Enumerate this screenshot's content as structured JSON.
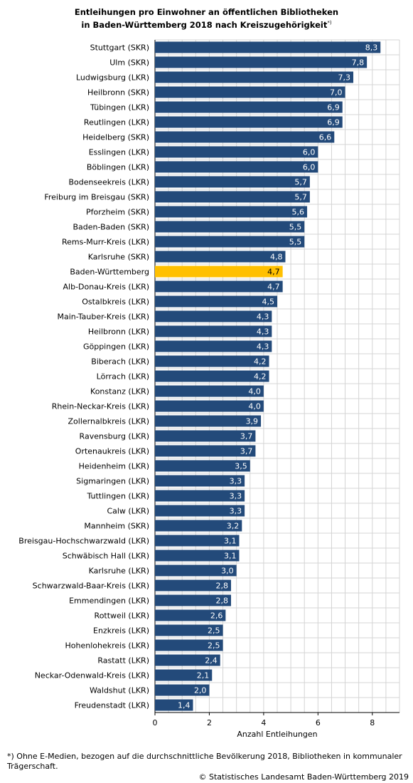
{
  "title_line1": "Entleihungen pro Einwohner an öffentlichen Bibliotheken",
  "title_line2": "in Baden-Württemberg 2018 nach Kreiszugehörigkeit",
  "title_marker": "*)",
  "footnote": "*) Ohne E-Medien, bezogen auf die durchschnittliche Bevölkerung 2018, Bibliotheken in kommunaler Trägerschaft.",
  "source": "© Statistisches Landesamt Baden-Württemberg 2019",
  "colors": {
    "bar": "#234a7a",
    "highlight": "#ffc000",
    "grid": "#d4d4d4"
  },
  "chart_data": {
    "type": "bar",
    "orientation": "horizontal",
    "xlabel": "Anzahl Entleihungen",
    "xlim": [
      0,
      9
    ],
    "xticks": [
      0,
      2,
      4,
      6,
      8
    ],
    "grid": true,
    "highlight": "Baden-Württemberg",
    "categories": [
      "Stuttgart (SKR)",
      "Ulm (SKR)",
      "Ludwigsburg (LKR)",
      "Heilbronn (SKR)",
      "Tübingen (LKR)",
      "Reutlingen (LKR)",
      "Heidelberg (SKR)",
      "Esslingen (LKR)",
      "Böblingen (LKR)",
      "Bodenseekreis (LKR)",
      "Freiburg im Breisgau (SKR)",
      "Pforzheim (SKR)",
      "Baden-Baden (SKR)",
      "Rems-Murr-Kreis (LKR)",
      "Karlsruhe (SKR)",
      "Baden-Württemberg",
      "Alb-Donau-Kreis (LKR)",
      "Ostalbkreis (LKR)",
      "Main-Tauber-Kreis (LKR)",
      "Heilbronn (LKR)",
      "Göppingen (LKR)",
      "Biberach (LKR)",
      "Lörrach (LKR)",
      "Konstanz (LKR)",
      "Rhein-Neckar-Kreis (LKR)",
      "Zollernalbkreis (LKR)",
      "Ravensburg (LKR)",
      "Ortenaukreis (LKR)",
      "Heidenheim (LKR)",
      "Sigmaringen (LKR)",
      "Tuttlingen (LKR)",
      "Calw (LKR)",
      "Mannheim (SKR)",
      "Breisgau-Hochschwarzwald (LKR)",
      "Schwäbisch Hall (LKR)",
      "Karlsruhe (LKR)",
      "Schwarzwald-Baar-Kreis (LKR)",
      "Emmendingen (LKR)",
      "Rottweil (LKR)",
      "Enzkreis (LKR)",
      "Hohenlohekreis (LKR)",
      "Rastatt (LKR)",
      "Neckar-Odenwald-Kreis (LKR)",
      "Waldshut (LKR)",
      "Freudenstadt (LKR)"
    ],
    "values": [
      8.3,
      7.8,
      7.3,
      7.0,
      6.9,
      6.9,
      6.6,
      6.0,
      6.0,
      5.7,
      5.7,
      5.6,
      5.5,
      5.5,
      4.8,
      4.7,
      4.7,
      4.5,
      4.3,
      4.3,
      4.3,
      4.2,
      4.2,
      4.0,
      4.0,
      3.9,
      3.7,
      3.7,
      3.5,
      3.3,
      3.3,
      3.3,
      3.2,
      3.1,
      3.1,
      3.0,
      2.8,
      2.8,
      2.6,
      2.5,
      2.5,
      2.4,
      2.1,
      2.0,
      1.4
    ]
  }
}
